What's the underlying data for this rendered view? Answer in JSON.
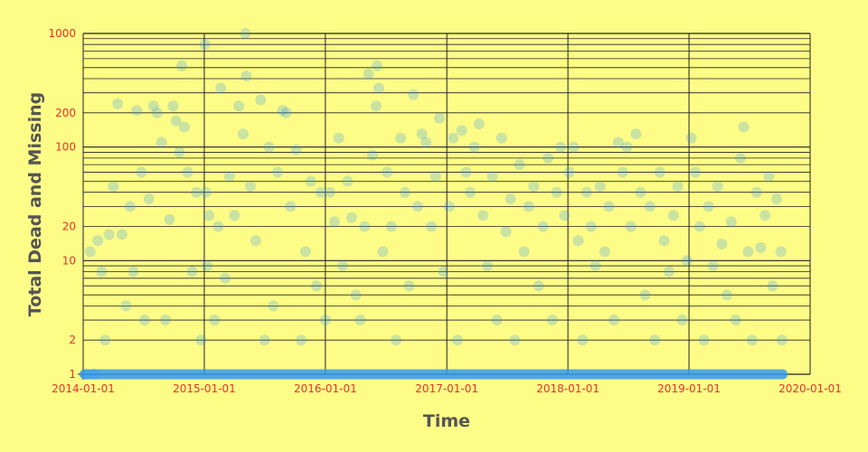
{
  "chart_data": {
    "type": "scatter",
    "title": "",
    "xlabel": "Time",
    "ylabel": "Total Dead and Missing",
    "x_scale": "time",
    "y_scale": "log",
    "xlim": [
      "2014-01-01",
      "2020-01-01"
    ],
    "ylim": [
      1,
      1000
    ],
    "x_ticks": [
      "2014-01-01",
      "2015-01-01",
      "2016-01-01",
      "2017-01-01",
      "2018-01-01",
      "2019-01-01",
      "2020-01-01"
    ],
    "y_ticks": [
      1,
      2,
      10,
      20,
      100,
      200,
      1000
    ],
    "y_tick_labels": [
      "1",
      "2",
      "10",
      "20",
      "100",
      "200",
      "1000"
    ],
    "grid": true,
    "legend": "none",
    "colors": {
      "background": "#FDFC87",
      "marker": "#3399F0",
      "grid": "#222222",
      "tick_label": "#E8332A",
      "axis_title": "#555555"
    },
    "marker_opacity": 0.25,
    "x_data_range": [
      "2014-01-05",
      "2019-10-10"
    ],
    "series": [
      {
        "values": [
          [
            "2014-01-10",
            1
          ],
          [
            "2014-01-22",
            12
          ],
          [
            "2014-02-03",
            1
          ],
          [
            "2014-02-14",
            15
          ],
          [
            "2014-02-25",
            8
          ],
          [
            "2014-03-08",
            2
          ],
          [
            "2014-03-20",
            17
          ],
          [
            "2014-04-02",
            45
          ],
          [
            "2014-04-15",
            240
          ],
          [
            "2014-04-28",
            17
          ],
          [
            "2014-05-10",
            4
          ],
          [
            "2014-05-22",
            30
          ],
          [
            "2014-06-01",
            8
          ],
          [
            "2014-06-12",
            210
          ],
          [
            "2014-06-25",
            60
          ],
          [
            "2014-07-05",
            3
          ],
          [
            "2014-07-18",
            35
          ],
          [
            "2014-08-01",
            230
          ],
          [
            "2014-08-12",
            200
          ],
          [
            "2014-08-25",
            110
          ],
          [
            "2014-09-06",
            3
          ],
          [
            "2014-09-18",
            23
          ],
          [
            "2014-09-29",
            230
          ],
          [
            "2014-10-08",
            170
          ],
          [
            "2014-10-18",
            90
          ],
          [
            "2014-10-25",
            520
          ],
          [
            "2014-11-02",
            150
          ],
          [
            "2014-11-12",
            60
          ],
          [
            "2014-11-25",
            8
          ],
          [
            "2014-12-08",
            40
          ],
          [
            "2014-12-22",
            2
          ],
          [
            "2015-01-03",
            800
          ],
          [
            "2015-01-06",
            40
          ],
          [
            "2015-01-10",
            9
          ],
          [
            "2015-01-15",
            25
          ],
          [
            "2015-02-01",
            3
          ],
          [
            "2015-02-12",
            20
          ],
          [
            "2015-02-20",
            330
          ],
          [
            "2015-03-05",
            7
          ],
          [
            "2015-03-18",
            55
          ],
          [
            "2015-04-02",
            25
          ],
          [
            "2015-04-15",
            230
          ],
          [
            "2015-04-28",
            130
          ],
          [
            "2015-05-05",
            1000
          ],
          [
            "2015-05-08",
            420
          ],
          [
            "2015-05-20",
            45
          ],
          [
            "2015-06-05",
            15
          ],
          [
            "2015-06-20",
            260
          ],
          [
            "2015-07-02",
            2
          ],
          [
            "2015-07-15",
            100
          ],
          [
            "2015-07-28",
            4
          ],
          [
            "2015-08-10",
            60
          ],
          [
            "2015-08-25",
            210
          ],
          [
            "2015-09-05",
            200
          ],
          [
            "2015-09-18",
            30
          ],
          [
            "2015-10-05",
            95
          ],
          [
            "2015-10-20",
            2
          ],
          [
            "2015-11-02",
            12
          ],
          [
            "2015-11-18",
            50
          ],
          [
            "2015-12-05",
            6
          ],
          [
            "2015-12-18",
            40
          ],
          [
            "2016-01-01",
            3
          ],
          [
            "2016-01-15",
            40
          ],
          [
            "2016-01-28",
            22
          ],
          [
            "2016-02-10",
            120
          ],
          [
            "2016-02-22",
            9
          ],
          [
            "2016-03-08",
            50
          ],
          [
            "2016-03-20",
            24
          ],
          [
            "2016-04-02",
            5
          ],
          [
            "2016-04-15",
            3
          ],
          [
            "2016-04-28",
            20
          ],
          [
            "2016-05-10",
            440
          ],
          [
            "2016-05-22",
            85
          ],
          [
            "2016-06-02",
            230
          ],
          [
            "2016-06-05",
            520
          ],
          [
            "2016-06-10",
            330
          ],
          [
            "2016-06-22",
            12
          ],
          [
            "2016-07-05",
            60
          ],
          [
            "2016-07-18",
            20
          ],
          [
            "2016-08-01",
            2
          ],
          [
            "2016-08-15",
            120
          ],
          [
            "2016-08-28",
            40
          ],
          [
            "2016-09-10",
            6
          ],
          [
            "2016-09-22",
            290
          ],
          [
            "2016-10-05",
            30
          ],
          [
            "2016-10-18",
            130
          ],
          [
            "2016-10-30",
            110
          ],
          [
            "2016-11-15",
            20
          ],
          [
            "2016-11-28",
            55
          ],
          [
            "2016-12-10",
            180
          ],
          [
            "2016-12-22",
            8
          ],
          [
            "2017-01-08",
            30
          ],
          [
            "2017-01-20",
            120
          ],
          [
            "2017-02-02",
            2
          ],
          [
            "2017-02-15",
            140
          ],
          [
            "2017-02-28",
            60
          ],
          [
            "2017-03-12",
            40
          ],
          [
            "2017-03-25",
            100
          ],
          [
            "2017-04-08",
            160
          ],
          [
            "2017-04-20",
            25
          ],
          [
            "2017-05-03",
            9
          ],
          [
            "2017-05-18",
            55
          ],
          [
            "2017-06-01",
            3
          ],
          [
            "2017-06-15",
            120
          ],
          [
            "2017-06-28",
            18
          ],
          [
            "2017-07-12",
            35
          ],
          [
            "2017-07-25",
            2
          ],
          [
            "2017-08-08",
            70
          ],
          [
            "2017-08-22",
            12
          ],
          [
            "2017-09-05",
            30
          ],
          [
            "2017-09-20",
            45
          ],
          [
            "2017-10-05",
            6
          ],
          [
            "2017-10-18",
            20
          ],
          [
            "2017-11-02",
            80
          ],
          [
            "2017-11-15",
            3
          ],
          [
            "2017-11-28",
            40
          ],
          [
            "2017-12-10",
            100
          ],
          [
            "2017-12-22",
            25
          ],
          [
            "2018-01-05",
            60
          ],
          [
            "2018-01-18",
            100
          ],
          [
            "2018-02-01",
            15
          ],
          [
            "2018-02-14",
            2
          ],
          [
            "2018-02-27",
            40
          ],
          [
            "2018-03-12",
            20
          ],
          [
            "2018-03-25",
            9
          ],
          [
            "2018-04-08",
            45
          ],
          [
            "2018-04-22",
            12
          ],
          [
            "2018-05-05",
            30
          ],
          [
            "2018-05-20",
            3
          ],
          [
            "2018-06-02",
            110
          ],
          [
            "2018-06-15",
            60
          ],
          [
            "2018-06-28",
            100
          ],
          [
            "2018-07-10",
            20
          ],
          [
            "2018-07-25",
            130
          ],
          [
            "2018-08-08",
            40
          ],
          [
            "2018-08-22",
            5
          ],
          [
            "2018-09-05",
            30
          ],
          [
            "2018-09-20",
            2
          ],
          [
            "2018-10-05",
            60
          ],
          [
            "2018-10-18",
            15
          ],
          [
            "2018-11-02",
            8
          ],
          [
            "2018-11-15",
            25
          ],
          [
            "2018-11-28",
            45
          ],
          [
            "2018-12-12",
            3
          ],
          [
            "2018-12-26",
            10
          ],
          [
            "2019-01-08",
            120
          ],
          [
            "2019-01-20",
            60
          ],
          [
            "2019-02-02",
            20
          ],
          [
            "2019-02-15",
            2
          ],
          [
            "2019-03-01",
            30
          ],
          [
            "2019-03-15",
            9
          ],
          [
            "2019-03-28",
            45
          ],
          [
            "2019-04-10",
            14
          ],
          [
            "2019-04-25",
            5
          ],
          [
            "2019-05-08",
            22
          ],
          [
            "2019-05-22",
            3
          ],
          [
            "2019-06-05",
            80
          ],
          [
            "2019-06-15",
            150
          ],
          [
            "2019-06-28",
            12
          ],
          [
            "2019-07-10",
            2
          ],
          [
            "2019-07-24",
            40
          ],
          [
            "2019-08-05",
            13
          ],
          [
            "2019-08-18",
            25
          ],
          [
            "2019-08-30",
            55
          ],
          [
            "2019-09-10",
            6
          ],
          [
            "2019-09-22",
            35
          ],
          [
            "2019-10-05",
            12
          ],
          [
            "2019-10-08",
            2
          ]
        ]
      }
    ]
  }
}
